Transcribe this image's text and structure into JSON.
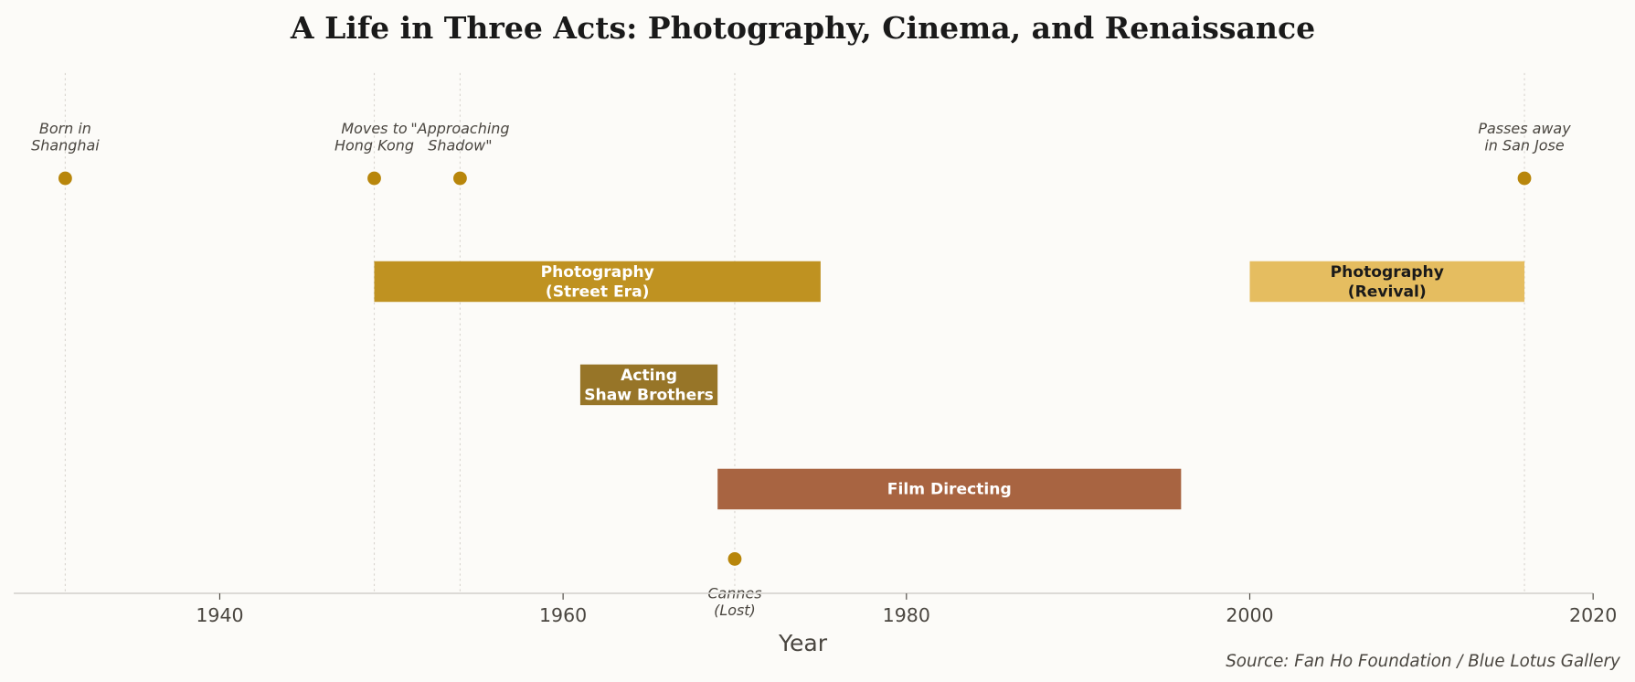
{
  "chart_data": {
    "type": "timeline",
    "title": "A Life in Three Acts: Photography, Cinema, and Renaissance",
    "xlabel": "Year",
    "xlim": [
      1928,
      2020
    ],
    "xticks": [
      1940,
      1960,
      1980,
      2000,
      2020
    ],
    "source": "Source: Fan Ho Foundation / Blue Lotus Gallery",
    "events": [
      {
        "year": 1931,
        "label": [
          "Born in",
          "Shanghai"
        ],
        "position": "top"
      },
      {
        "year": 1949,
        "label": [
          "Moves to",
          "Hong Kong"
        ],
        "position": "top"
      },
      {
        "year": 1954,
        "label": [
          "\"Approaching",
          "Shadow\""
        ],
        "position": "top"
      },
      {
        "year": 1970,
        "label": [
          "Cannes",
          "(Lost)"
        ],
        "position": "bottom"
      },
      {
        "year": 2016,
        "label": [
          "Passes away",
          "in San Jose"
        ],
        "position": "top"
      }
    ],
    "periods": [
      {
        "start": 1949,
        "end": 1975,
        "row": 1,
        "label": [
          "Photography",
          "(Street Era)"
        ],
        "color": "#bf9221",
        "text_color": "#ffffff"
      },
      {
        "start": 2000,
        "end": 2016,
        "row": 1,
        "label": [
          "Photography",
          "(Revival)"
        ],
        "color": "#e5bd60",
        "text_color": "#1a1a1a"
      },
      {
        "start": 1961,
        "end": 1969,
        "row": 2,
        "label": [
          "Acting",
          "Shaw Brothers"
        ],
        "color": "#977528",
        "text_color": "#ffffff"
      },
      {
        "start": 1969,
        "end": 1996,
        "row": 3,
        "label": [
          "Film Directing"
        ],
        "color": "#a86441",
        "text_color": "#ffffff"
      }
    ],
    "event_color": "#b8860b",
    "grid": "dotted vertical lines at event years"
  }
}
